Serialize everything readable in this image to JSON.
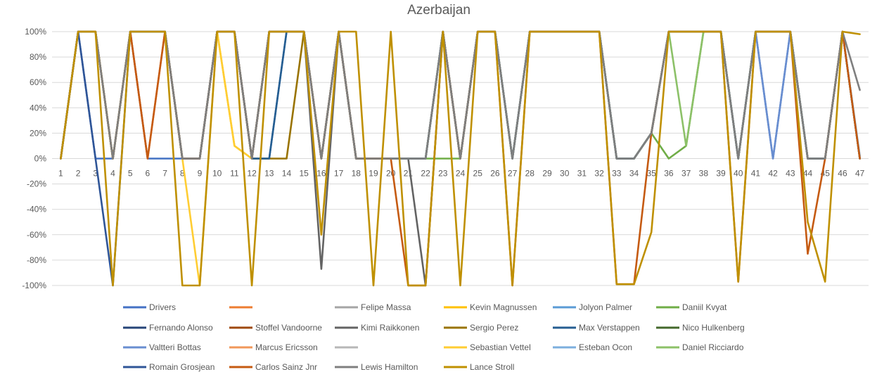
{
  "chart_data": {
    "type": "line",
    "title": "Azerbaijan",
    "xlabel": "",
    "ylabel": "",
    "x": [
      1,
      2,
      3,
      4,
      5,
      6,
      7,
      8,
      9,
      10,
      11,
      12,
      13,
      14,
      15,
      16,
      17,
      18,
      19,
      20,
      21,
      22,
      23,
      24,
      25,
      26,
      27,
      28,
      29,
      30,
      31,
      32,
      33,
      34,
      35,
      36,
      37,
      38,
      39,
      40,
      41,
      42,
      43,
      44,
      45,
      46,
      47
    ],
    "ylim": [
      -100,
      100
    ],
    "yticks": [
      100,
      80,
      60,
      40,
      20,
      0,
      -20,
      -40,
      -60,
      -80,
      -100
    ],
    "ytick_labels": [
      "100%",
      "80%",
      "60%",
      "40%",
      "20%",
      "0%",
      "-20%",
      "-40%",
      "-60%",
      "-80%",
      "-100%"
    ],
    "grid": true,
    "legend_position": "bottom",
    "series": [
      {
        "name": "Drivers",
        "color": "#4472c4",
        "values": [
          0,
          100,
          0,
          0,
          100,
          0,
          0,
          0,
          0,
          100,
          100,
          0,
          0,
          100,
          100,
          0,
          100,
          0,
          0,
          0,
          0,
          0,
          100,
          0,
          100,
          100,
          0,
          100,
          100,
          100,
          100,
          100,
          0,
          0,
          20,
          100,
          100,
          100,
          100,
          0,
          100,
          0,
          100,
          0,
          0,
          100,
          0
        ]
      },
      {
        "name": "",
        "color": "#ed7d31",
        "values": [
          0,
          100,
          100,
          0,
          100,
          0,
          100,
          0,
          0,
          100,
          100,
          0,
          100,
          100,
          100,
          0,
          100,
          0,
          0,
          0,
          0,
          0,
          100,
          0,
          100,
          100,
          0,
          100,
          100,
          100,
          100,
          100,
          0,
          0,
          20,
          100,
          100,
          100,
          100,
          0,
          100,
          100,
          100,
          0,
          0,
          100,
          0
        ]
      },
      {
        "name": "Felipe Massa",
        "color": "#a5a5a5",
        "values": [
          0,
          100,
          100,
          0,
          100,
          100,
          100,
          0,
          0,
          100,
          100,
          0,
          100,
          100,
          100,
          0,
          100,
          0,
          0,
          0,
          0,
          0,
          100,
          0,
          100,
          100,
          0,
          100,
          100,
          100,
          100,
          100,
          0,
          0,
          20,
          100,
          100,
          100,
          100,
          0,
          100,
          100,
          100,
          0,
          0,
          100,
          0
        ]
      },
      {
        "name": "Kevin Magnussen",
        "color": "#ffc000",
        "values": [
          0,
          100,
          100,
          0,
          100,
          100,
          100,
          0,
          0,
          100,
          10,
          0,
          100,
          100,
          100,
          0,
          100,
          0,
          0,
          0,
          0,
          0,
          100,
          0,
          100,
          100,
          0,
          100,
          100,
          100,
          100,
          100,
          0,
          0,
          20,
          100,
          100,
          100,
          100,
          0,
          100,
          100,
          100,
          0,
          0,
          100,
          0
        ]
      },
      {
        "name": "Jolyon Palmer",
        "color": "#5b9bd5",
        "values": [
          0,
          100,
          100,
          0,
          100,
          100,
          100,
          0,
          0,
          100,
          100,
          0,
          100,
          100,
          100,
          0,
          100,
          0,
          0,
          0,
          0,
          0,
          100,
          0,
          100,
          100,
          0,
          100,
          100,
          100,
          100,
          100,
          0,
          0,
          20,
          100,
          100,
          100,
          100,
          0,
          100,
          100,
          100,
          0,
          0,
          100,
          0
        ]
      },
      {
        "name": "Daniil Kvyat",
        "color": "#70ad47",
        "values": [
          0,
          100,
          100,
          0,
          100,
          100,
          100,
          0,
          0,
          100,
          100,
          0,
          100,
          100,
          100,
          0,
          100,
          0,
          0,
          0,
          0,
          0,
          0,
          0,
          100,
          100,
          0,
          100,
          100,
          100,
          100,
          100,
          0,
          0,
          20,
          0,
          10,
          100,
          100,
          0,
          100,
          100,
          100,
          0,
          0,
          100,
          0
        ]
      },
      {
        "name": "Fernando Alonso",
        "color": "#264478",
        "values": [
          0,
          100,
          100,
          0,
          100,
          100,
          100,
          0,
          0,
          100,
          100,
          0,
          100,
          100,
          100,
          0,
          100,
          0,
          0,
          0,
          0,
          0,
          100,
          0,
          100,
          100,
          0,
          100,
          100,
          100,
          100,
          100,
          0,
          0,
          20,
          100,
          100,
          100,
          100,
          0,
          100,
          100,
          100,
          0,
          0,
          100,
          0
        ]
      },
      {
        "name": "Stoffel Vandoorne",
        "color": "#9e480e",
        "values": [
          0,
          100,
          100,
          0,
          100,
          100,
          100,
          0,
          0,
          100,
          100,
          0,
          100,
          100,
          100,
          0,
          100,
          0,
          0,
          0,
          0,
          0,
          100,
          0,
          100,
          100,
          0,
          100,
          100,
          100,
          100,
          100,
          0,
          0,
          20,
          100,
          100,
          100,
          100,
          0,
          100,
          100,
          100,
          0,
          0,
          100,
          0
        ]
      },
      {
        "name": "Kimi Raikkonen",
        "color": "#636363",
        "values": [
          0,
          100,
          100,
          0,
          100,
          100,
          100,
          0,
          0,
          100,
          100,
          0,
          100,
          100,
          100,
          -87,
          100,
          0,
          0,
          0,
          0,
          -100,
          100,
          0,
          100,
          100,
          0,
          100,
          100,
          100,
          100,
          100,
          0,
          0,
          20,
          100,
          100,
          100,
          100,
          0,
          100,
          100,
          100,
          0,
          0,
          100,
          0
        ]
      },
      {
        "name": "Sergio Perez",
        "color": "#997300",
        "values": [
          0,
          100,
          100,
          0,
          100,
          100,
          100,
          0,
          0,
          100,
          100,
          0,
          0,
          0,
          100,
          0,
          100,
          0,
          0,
          0,
          0,
          0,
          100,
          0,
          100,
          100,
          0,
          100,
          100,
          100,
          100,
          100,
          0,
          0,
          20,
          100,
          100,
          100,
          100,
          0,
          100,
          100,
          100,
          0,
          0,
          100,
          0
        ]
      },
      {
        "name": "Max Verstappen",
        "color": "#255e91",
        "values": [
          0,
          100,
          100,
          0,
          100,
          100,
          100,
          0,
          0,
          100,
          100,
          0,
          0,
          100,
          100,
          0,
          100,
          0,
          0,
          0,
          0,
          0,
          100,
          0,
          100,
          100,
          0,
          100,
          100,
          100,
          100,
          100,
          0,
          0,
          20,
          100,
          100,
          100,
          100,
          0,
          100,
          100,
          100,
          0,
          0,
          100,
          0
        ]
      },
      {
        "name": "Nico Hulkenberg",
        "color": "#43682b",
        "values": [
          0,
          100,
          100,
          0,
          100,
          100,
          100,
          0,
          0,
          100,
          100,
          0,
          100,
          100,
          100,
          0,
          100,
          0,
          0,
          0,
          0,
          0,
          100,
          0,
          100,
          100,
          0,
          100,
          100,
          100,
          100,
          100,
          0,
          0,
          20,
          100,
          100,
          100,
          100,
          0,
          100,
          100,
          100,
          0,
          0,
          100,
          0
        ]
      },
      {
        "name": "Valtteri Bottas",
        "color": "#698ed0",
        "values": [
          0,
          100,
          100,
          0,
          100,
          100,
          100,
          0,
          0,
          100,
          100,
          0,
          100,
          100,
          100,
          0,
          100,
          0,
          0,
          0,
          0,
          0,
          100,
          0,
          100,
          100,
          0,
          100,
          100,
          100,
          100,
          100,
          0,
          0,
          20,
          100,
          100,
          100,
          100,
          0,
          100,
          0,
          100,
          0,
          0,
          100,
          0
        ]
      },
      {
        "name": "Marcus Ericsson",
        "color": "#f1975a",
        "values": [
          0,
          100,
          100,
          0,
          100,
          100,
          100,
          0,
          0,
          100,
          100,
          0,
          100,
          100,
          100,
          0,
          100,
          0,
          0,
          0,
          0,
          0,
          100,
          0,
          100,
          100,
          0,
          100,
          100,
          100,
          100,
          100,
          0,
          0,
          20,
          100,
          100,
          100,
          100,
          0,
          100,
          100,
          100,
          0,
          0,
          100,
          0
        ]
      },
      {
        "name": "",
        "color": "#b7b7b7",
        "values": [
          0,
          100,
          100,
          0,
          100,
          100,
          100,
          0,
          0,
          100,
          100,
          0,
          100,
          100,
          100,
          0,
          100,
          0,
          0,
          0,
          0,
          0,
          100,
          0,
          100,
          100,
          0,
          100,
          100,
          100,
          100,
          100,
          0,
          0,
          20,
          100,
          100,
          100,
          100,
          0,
          100,
          100,
          100,
          0,
          0,
          100,
          0
        ]
      },
      {
        "name": "Sebastian Vettel",
        "color": "#ffcd33",
        "values": [
          0,
          100,
          100,
          0,
          100,
          100,
          100,
          0,
          -100,
          100,
          10,
          0,
          100,
          100,
          100,
          0,
          100,
          0,
          0,
          0,
          0,
          0,
          100,
          0,
          100,
          100,
          0,
          100,
          100,
          100,
          100,
          100,
          0,
          0,
          20,
          100,
          100,
          100,
          100,
          0,
          100,
          100,
          100,
          0,
          0,
          100,
          0
        ]
      },
      {
        "name": "Esteban Ocon",
        "color": "#7cafdd",
        "values": [
          0,
          100,
          100,
          0,
          100,
          100,
          100,
          0,
          0,
          100,
          100,
          0,
          100,
          100,
          100,
          0,
          100,
          0,
          0,
          0,
          0,
          0,
          100,
          0,
          100,
          100,
          0,
          100,
          100,
          100,
          100,
          100,
          0,
          0,
          20,
          100,
          100,
          100,
          100,
          0,
          100,
          100,
          100,
          0,
          0,
          100,
          2
        ]
      },
      {
        "name": "Daniel Ricciardo",
        "color": "#8cc168",
        "values": [
          0,
          100,
          100,
          0,
          100,
          100,
          100,
          0,
          0,
          100,
          100,
          0,
          100,
          100,
          100,
          0,
          100,
          0,
          0,
          0,
          0,
          0,
          100,
          0,
          100,
          100,
          0,
          100,
          100,
          100,
          100,
          100,
          0,
          0,
          20,
          100,
          10,
          100,
          100,
          0,
          100,
          100,
          100,
          0,
          0,
          100,
          0
        ]
      },
      {
        "name": "Romain Grosjean",
        "color": "#2f5597",
        "values": [
          0,
          100,
          0,
          -100,
          100,
          100,
          100,
          0,
          0,
          100,
          100,
          0,
          100,
          100,
          100,
          0,
          100,
          0,
          0,
          0,
          0,
          0,
          100,
          0,
          100,
          100,
          0,
          100,
          100,
          100,
          100,
          100,
          0,
          0,
          20,
          100,
          100,
          100,
          100,
          0,
          100,
          100,
          100,
          0,
          0,
          100,
          0
        ]
      },
      {
        "name": "Carlos Sainz Jnr",
        "color": "#c55a11",
        "values": [
          0,
          100,
          100,
          0,
          100,
          0,
          100,
          0,
          0,
          100,
          100,
          0,
          100,
          100,
          100,
          0,
          100,
          0,
          0,
          0,
          -100,
          -100,
          100,
          0,
          100,
          100,
          -100,
          100,
          100,
          100,
          100,
          100,
          -99,
          -99,
          20,
          100,
          100,
          100,
          100,
          -97,
          100,
          100,
          100,
          -75,
          0,
          100,
          0
        ]
      },
      {
        "name": "Lewis Hamilton",
        "color": "#7f7f7f",
        "values": [
          0,
          100,
          100,
          0,
          100,
          100,
          100,
          0,
          0,
          100,
          100,
          0,
          100,
          100,
          100,
          0,
          100,
          0,
          0,
          0,
          0,
          0,
          100,
          0,
          100,
          100,
          0,
          100,
          100,
          100,
          100,
          100,
          0,
          0,
          20,
          100,
          100,
          100,
          100,
          0,
          100,
          100,
          100,
          0,
          0,
          100,
          54
        ]
      },
      {
        "name": "Lance Stroll",
        "color": "#bf9000",
        "values": [
          0,
          100,
          100,
          -100,
          100,
          100,
          100,
          -100,
          -100,
          100,
          100,
          -100,
          100,
          100,
          100,
          -60,
          100,
          100,
          -100,
          100,
          -100,
          -100,
          100,
          -100,
          100,
          100,
          -100,
          100,
          100,
          100,
          100,
          100,
          -99,
          -99,
          -58,
          100,
          100,
          100,
          100,
          -97,
          100,
          100,
          100,
          -50,
          -97,
          100,
          98
        ]
      }
    ]
  }
}
